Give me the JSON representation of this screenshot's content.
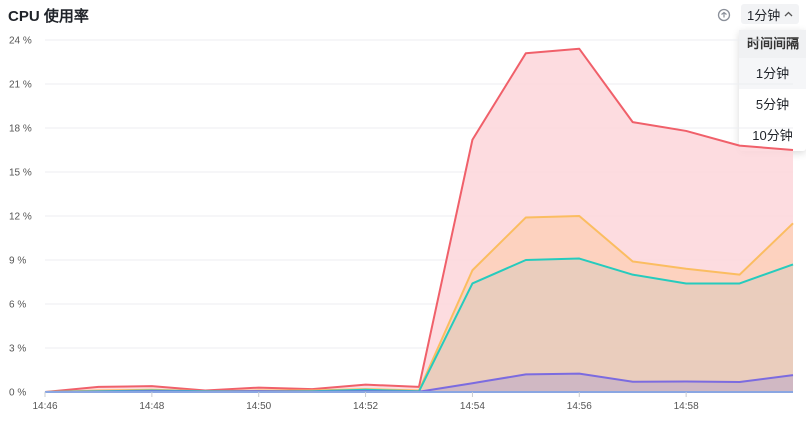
{
  "header": {
    "title": "CPU 使用率",
    "zoom_icon": "zoom-reset-icon",
    "interval_selected": "1分钟",
    "chevron_icon": "chevron-up-icon"
  },
  "dropdown": {
    "header": "时间间隔",
    "options": [
      "1分钟",
      "5分钟",
      "10分钟"
    ],
    "selected_index": 0
  },
  "chart_data": {
    "type": "area",
    "title": "CPU 使用率",
    "x": [
      "14:46",
      "14:47",
      "14:48",
      "14:49",
      "14:50",
      "14:51",
      "14:52",
      "14:53",
      "14:54",
      "14:55",
      "14:56",
      "14:57",
      "14:58",
      "14:59",
      "15:00"
    ],
    "xticks": [
      "14:46",
      "14:48",
      "14:50",
      "14:52",
      "14:54",
      "14:56",
      "14:58"
    ],
    "yticks": [
      "0 %",
      "3 %",
      "6 %",
      "9 %",
      "12 %",
      "15 %",
      "18 %",
      "21 %",
      "24 %"
    ],
    "ylim": [
      0,
      24
    ],
    "grid": true,
    "series": [
      {
        "color": "#f0606a",
        "fill": "#fdd6da",
        "values": [
          0,
          0.35,
          0.4,
          0.1,
          0.3,
          0.2,
          0.5,
          0.35,
          17.2,
          23.1,
          23.4,
          18.4,
          17.8,
          16.8,
          16.5
        ]
      },
      {
        "color": "#fbbd61",
        "fill": "#fdd0b8",
        "values": [
          0,
          0.1,
          0.15,
          0.05,
          0.1,
          0.1,
          0.2,
          0.1,
          8.3,
          11.9,
          12.0,
          8.9,
          8.4,
          8.0,
          11.5
        ]
      },
      {
        "color": "#26cbbd",
        "fill": "#e6cdbc",
        "values": [
          0,
          0.05,
          0.1,
          0.05,
          0.05,
          0.05,
          0.15,
          0.05,
          7.4,
          9.0,
          9.1,
          8.0,
          7.4,
          7.4,
          8.7
        ]
      },
      {
        "color": "#7b6be0",
        "fill": "#cbb4c4",
        "values": [
          0,
          0.02,
          0.05,
          0.02,
          0.05,
          0.02,
          0.05,
          0.02,
          0.6,
          1.2,
          1.25,
          0.7,
          0.72,
          0.68,
          1.15
        ]
      },
      {
        "color": "#4c7ff2",
        "fill": "none",
        "values": [
          0,
          0,
          0,
          0,
          0,
          0,
          0,
          0,
          0,
          0,
          0,
          0,
          0,
          0,
          0
        ]
      }
    ]
  }
}
